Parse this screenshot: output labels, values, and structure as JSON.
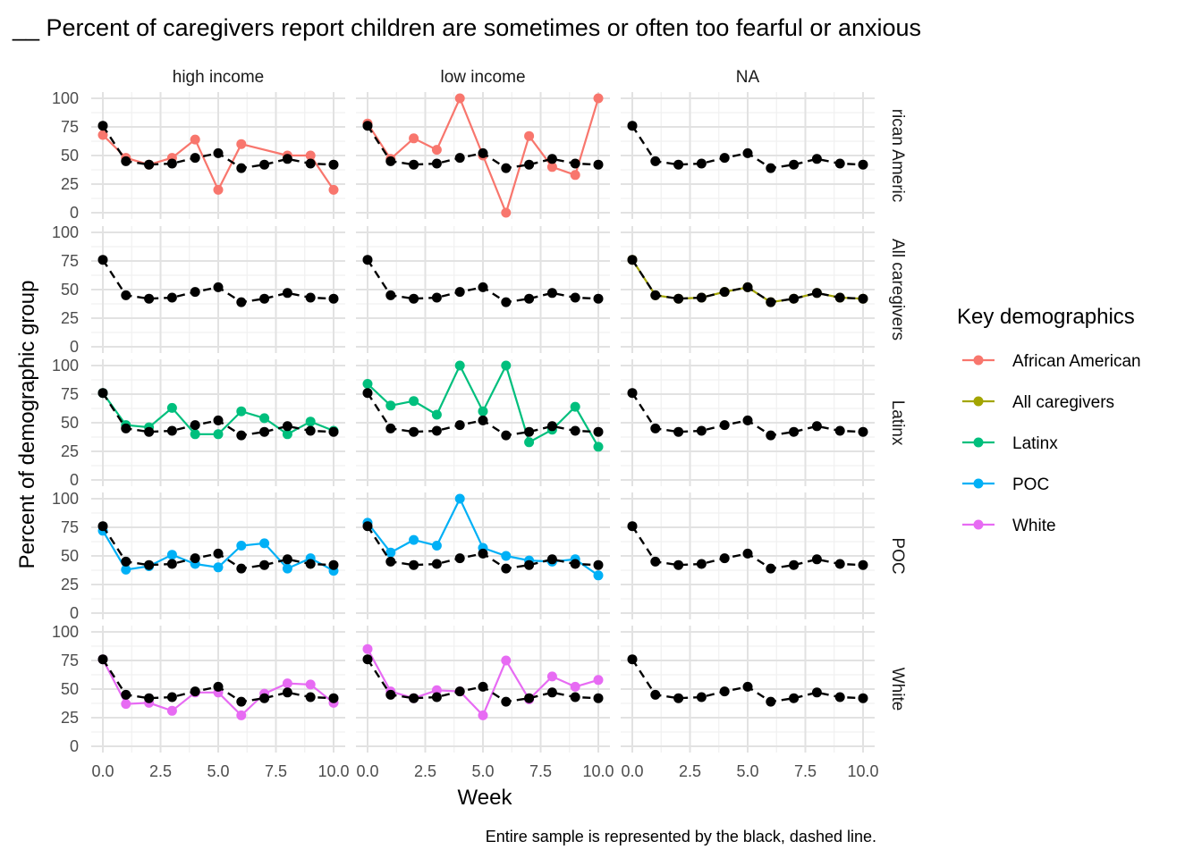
{
  "chart_data": {
    "type": "line",
    "title": "__ Percent of caregivers report children are sometimes or often too fearful or anxious",
    "xlabel": "Week",
    "ylabel": "Percent of demographic group",
    "caption": "Entire sample is represented by the black, dashed line.",
    "facet_columns": [
      "high income",
      "low income",
      "NA"
    ],
    "facet_rows": [
      "African American",
      "All caregivers",
      "Latinx",
      "POC",
      "White"
    ],
    "facet_row_strip_labels": [
      "rican Americ",
      "All caregivers",
      "Latinx",
      "POC",
      "White"
    ],
    "xlim": [
      0,
      10
    ],
    "ylim": [
      0,
      100
    ],
    "x_ticks": [
      "0.0",
      "2.5",
      "5.0",
      "7.5",
      "10.0"
    ],
    "y_ticks": [
      "0",
      "25",
      "50",
      "75",
      "100"
    ],
    "grid": true,
    "legend": {
      "title": "Key demographics",
      "position": "right",
      "entries": [
        {
          "name": "African American",
          "color": "#F8766D"
        },
        {
          "name": "All caregivers",
          "color": "#A3A500"
        },
        {
          "name": "Latinx",
          "color": "#00BF7D"
        },
        {
          "name": "POC",
          "color": "#00B0F6"
        },
        {
          "name": "White",
          "color": "#E76BF3"
        }
      ]
    },
    "reference_series": {
      "style": "black dashed",
      "color": "#000000",
      "x": [
        0,
        1,
        2,
        3,
        4,
        5,
        6,
        7,
        8,
        9,
        10
      ],
      "values": [
        76,
        45,
        42,
        43,
        48,
        52,
        39,
        42,
        47,
        43,
        42
      ]
    },
    "panels": [
      {
        "row": 0,
        "col": 0,
        "series": "African American",
        "x": [
          0,
          1,
          2,
          3,
          4,
          5,
          6,
          8,
          9,
          10
        ],
        "values": [
          68,
          48,
          42,
          48,
          64,
          20,
          60,
          50,
          50,
          20
        ]
      },
      {
        "row": 0,
        "col": 1,
        "series": "African American",
        "x": [
          0,
          1,
          2,
          3,
          4,
          5,
          6,
          7,
          8,
          9,
          10
        ],
        "values": [
          78,
          47,
          65,
          55,
          100,
          50,
          0,
          67,
          40,
          33,
          100
        ]
      },
      {
        "row": 1,
        "col": 2,
        "series": "All caregivers",
        "x": [
          0,
          1,
          2,
          3,
          4,
          5,
          6,
          7,
          8,
          9,
          10
        ],
        "values": [
          76,
          45,
          42,
          43,
          48,
          52,
          39,
          42,
          47,
          43,
          42
        ]
      },
      {
        "row": 2,
        "col": 0,
        "series": "Latinx",
        "x": [
          0,
          1,
          2,
          3,
          4,
          5,
          6,
          7,
          8,
          9,
          10
        ],
        "values": [
          76,
          48,
          46,
          63,
          40,
          40,
          60,
          54,
          40,
          51,
          43
        ]
      },
      {
        "row": 2,
        "col": 1,
        "series": "Latinx",
        "x": [
          0,
          1,
          2,
          3,
          4,
          5,
          6,
          7,
          8,
          9,
          10
        ],
        "values": [
          84,
          65,
          69,
          57,
          100,
          60,
          100,
          33,
          44,
          64,
          29
        ]
      },
      {
        "row": 3,
        "col": 0,
        "series": "POC",
        "x": [
          0,
          1,
          2,
          3,
          4,
          5,
          6,
          7,
          8,
          9,
          10
        ],
        "values": [
          72,
          38,
          41,
          51,
          43,
          40,
          59,
          61,
          39,
          48,
          37
        ]
      },
      {
        "row": 3,
        "col": 1,
        "series": "POC",
        "x": [
          0,
          1,
          2,
          3,
          4,
          5,
          6,
          7,
          8,
          9,
          10
        ],
        "values": [
          79,
          53,
          64,
          59,
          100,
          57,
          50,
          46,
          45,
          47,
          33
        ]
      },
      {
        "row": 4,
        "col": 0,
        "series": "White",
        "x": [
          0,
          1,
          2,
          3,
          4,
          5,
          6,
          7,
          8,
          9,
          10
        ],
        "values": [
          76,
          37,
          38,
          31,
          47,
          47,
          27,
          46,
          55,
          54,
          38
        ]
      },
      {
        "row": 4,
        "col": 1,
        "series": "White",
        "x": [
          0,
          1,
          2,
          3,
          4,
          5,
          6,
          7,
          8,
          9,
          10
        ],
        "values": [
          85,
          48,
          42,
          49,
          48,
          27,
          75,
          41,
          61,
          52,
          58
        ]
      }
    ]
  }
}
